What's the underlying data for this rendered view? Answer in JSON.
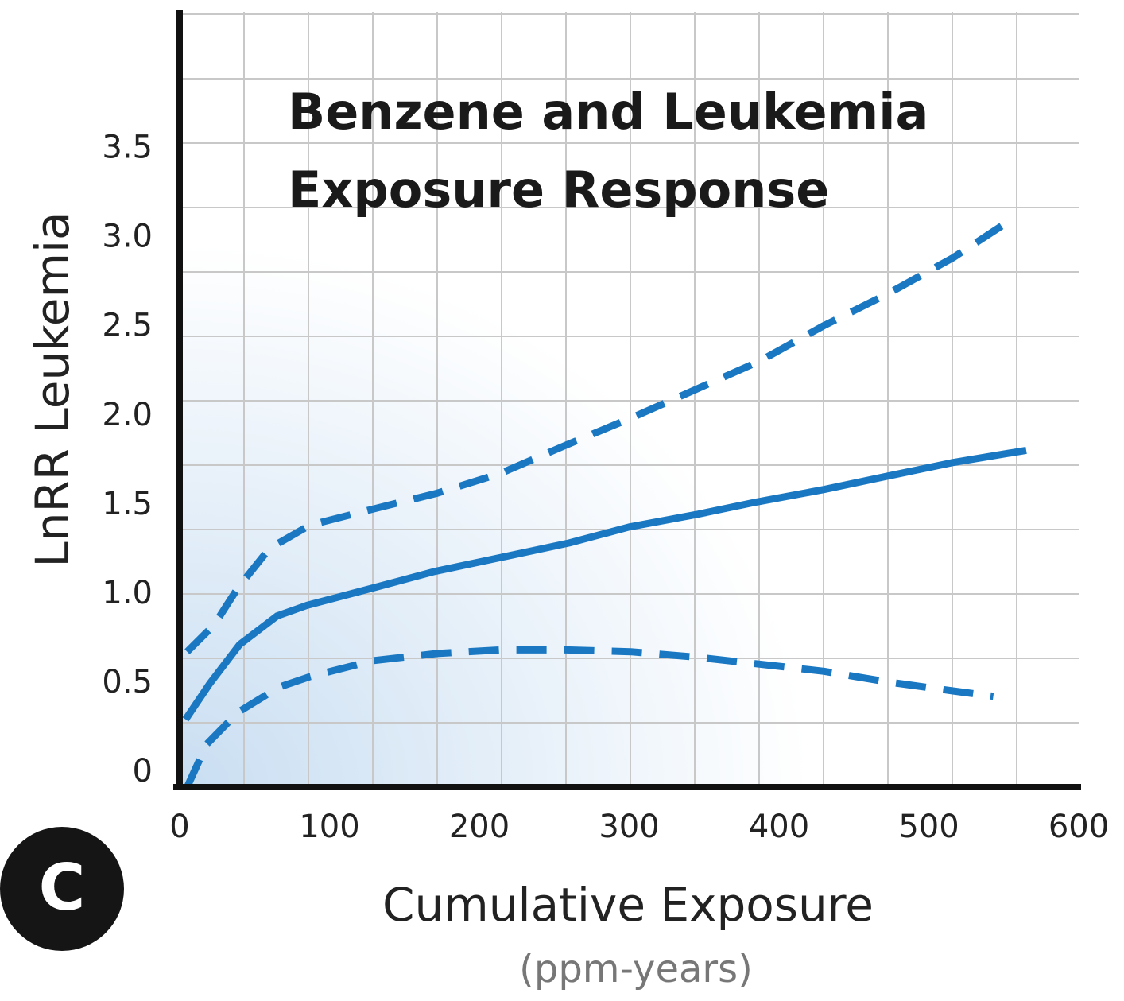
{
  "chart_data": {
    "type": "line",
    "title": "Benzene and Leukemia Exposure Response",
    "x_label": "Cumulative Exposure",
    "x_unit": "(ppm-years)",
    "y_label": "LnRR Leukemia",
    "panel_label": "C",
    "xlim": [
      0,
      600
    ],
    "ylim": [
      -0.08,
      4.27
    ],
    "xticks": [
      0,
      100,
      200,
      300,
      400,
      500,
      600
    ],
    "yticks": [
      0,
      0.5,
      {
        "value": 1,
        "label": "1.0"
      },
      1.5,
      {
        "value": 2,
        "label": "2.0"
      },
      2.5,
      {
        "value": 3,
        "label": "3.0"
      },
      3.5
    ],
    "series": [
      {
        "color": "#1a78c2",
        "style": "solid",
        "x": [
          4,
          20,
          40,
          65,
          85,
          130,
          170,
          215,
          260,
          300,
          345,
          385,
          430,
          475,
          515,
          565
        ],
        "values": [
          0.3,
          0.5,
          0.72,
          0.88,
          0.94,
          1.04,
          1.13,
          1.21,
          1.29,
          1.38,
          1.45,
          1.52,
          1.59,
          1.67,
          1.74,
          1.81
        ]
      },
      {
        "color": "#1a78c2",
        "style": "dashed",
        "x": [
          5,
          23,
          39,
          60,
          87,
          129,
          172,
          214,
          258,
          301,
          344,
          387,
          430,
          473,
          516,
          556
        ],
        "values": [
          0.68,
          0.83,
          1.04,
          1.26,
          1.39,
          1.48,
          1.57,
          1.68,
          1.84,
          1.99,
          2.15,
          2.31,
          2.51,
          2.69,
          2.89,
          3.11
        ]
      },
      {
        "color": "#1a78c2",
        "style": "dashed",
        "x": [
          5,
          18,
          39,
          66,
          87,
          129,
          172,
          214,
          258,
          301,
          344,
          387,
          430,
          473,
          516,
          543
        ],
        "values": [
          -0.08,
          0.16,
          0.34,
          0.48,
          0.54,
          0.63,
          0.67,
          0.69,
          0.69,
          0.68,
          0.65,
          0.61,
          0.57,
          0.51,
          0.46,
          0.43
        ]
      }
    ]
  }
}
